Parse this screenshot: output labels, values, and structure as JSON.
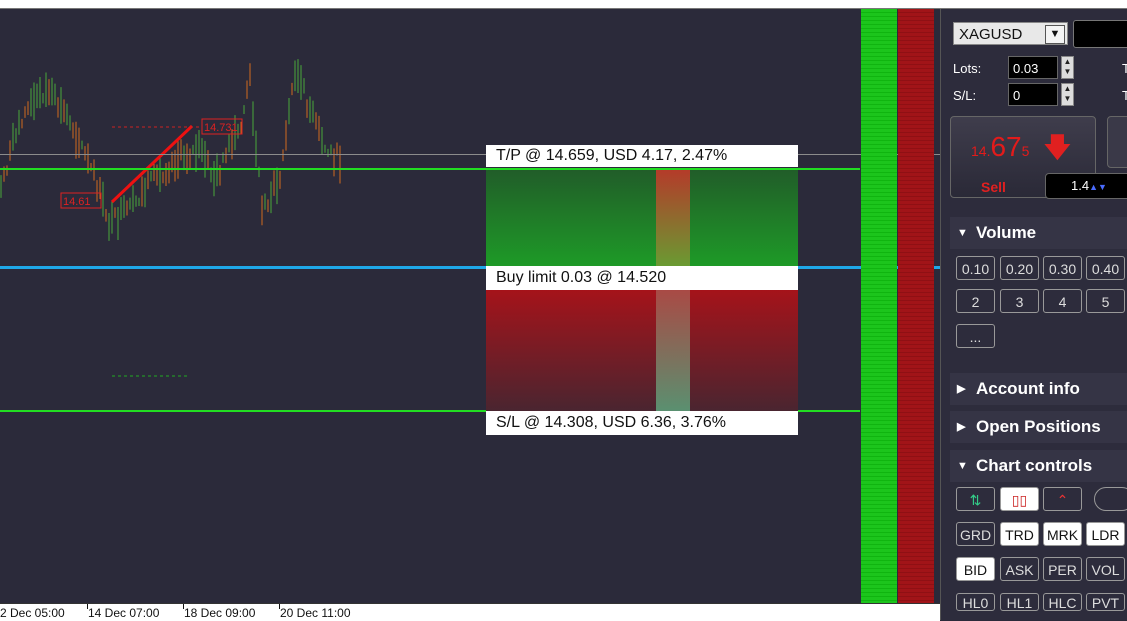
{
  "chart": {
    "tp_label": "T/P @ 14.659, USD 4.17, 2.47%",
    "buy_limit_label": "Buy limit 0.03 @ 14.520",
    "sl_label": "S/L @ 14.308, USD 6.36, 3.76%",
    "price_tag_high": "14.731",
    "price_tag_low": "14.61",
    "x_axis": [
      "2 Dec 05:00",
      "14 Dec 07:00",
      "18 Dec 09:00",
      "20 Dec 11:00"
    ]
  },
  "panel": {
    "symbol": "XAGUSD",
    "lots_label": "Lots:",
    "lots_value": "0.03",
    "sl_label": "S/L:",
    "sl_value": "0",
    "t1": "T",
    "t2": "T",
    "sell_price_small": "14.",
    "sell_price_big": "67",
    "sell_price_frac": "5",
    "sell_label": "Sell",
    "spread": "1.4",
    "volume_head": "Volume",
    "volume_buttons": [
      "0.10",
      "0.20",
      "0.30",
      "0.40",
      "2",
      "3",
      "4",
      "5",
      "..."
    ],
    "account_head": "Account info",
    "positions_head": "Open Positions",
    "chart_controls_head": "Chart controls",
    "controls_row2": [
      "GRD",
      "TRD",
      "MRK",
      "LDR"
    ],
    "controls_row3": [
      "BID",
      "ASK",
      "PER",
      "VOL"
    ],
    "controls_row4": [
      "HL0",
      "HL1",
      "HLC",
      "PVT"
    ]
  }
}
